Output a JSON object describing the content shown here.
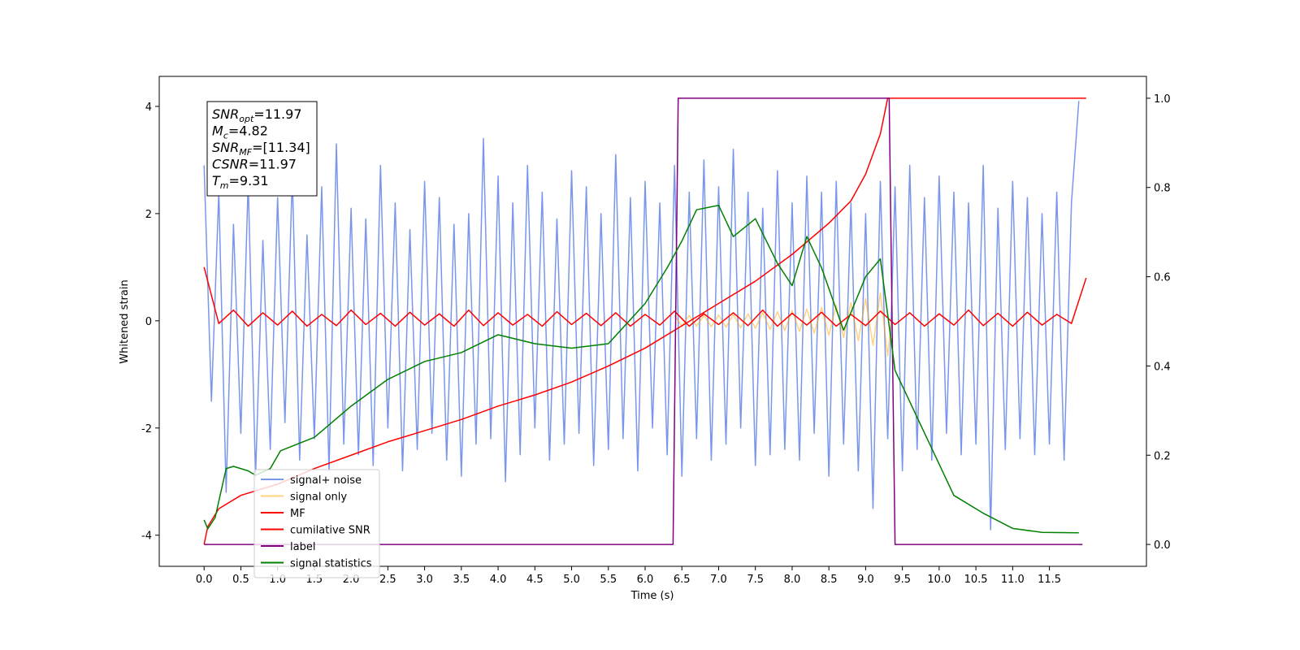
{
  "chart_data": {
    "type": "line",
    "xlabel": "Time (s)",
    "ylabel": "Whitened strain",
    "xlim": [
      -0.61,
      12.82
    ],
    "ylim": [
      -4.58,
      4.56
    ],
    "y2lim": [
      -0.049,
      1.049
    ],
    "xticks": [
      {
        "value": 0,
        "label": "0.0"
      },
      0.5,
      {
        "value": 1,
        "label": "1.0"
      },
      1.5,
      {
        "value": 2,
        "label": "2.0"
      },
      2.5,
      {
        "value": 3,
        "label": "3.0"
      },
      3.5,
      {
        "value": 4,
        "label": "4.0"
      },
      4.5,
      {
        "value": 5,
        "label": "5.0"
      },
      5.5,
      {
        "value": 6,
        "label": "6.0"
      },
      6.5,
      {
        "value": 7,
        "label": "7.0"
      },
      7.5,
      {
        "value": 8,
        "label": "8.0"
      },
      8.5,
      {
        "value": 9,
        "label": "9.0"
      },
      9.5,
      {
        "value": 10,
        "label": "10.0"
      },
      10.5,
      {
        "value": 11,
        "label": "11.0"
      },
      11.5
    ],
    "yticks": [
      -4,
      -2,
      0,
      2,
      4
    ],
    "y2ticks": [
      {
        "value": 0,
        "label": "0.0"
      },
      0.2,
      0.4,
      0.6,
      0.8,
      {
        "value": 1,
        "label": "1.0"
      }
    ],
    "legend_position": "lower left",
    "annotations": [
      {
        "symbol": "SNR",
        "sub": "opt",
        "text": "=11.97"
      },
      {
        "symbol": "M",
        "sub": "c",
        "text": "=4.82"
      },
      {
        "symbol": "SNR",
        "sub": "MF",
        "text": "=[11.34]"
      },
      {
        "symbol": "CSNR",
        "sub": "",
        "text": "=11.97"
      },
      {
        "symbol": "T",
        "sub": "m",
        "text": "=9.31"
      }
    ],
    "series": [
      {
        "name": "signal+ noise",
        "color": "#4169e1",
        "opacity": 0.7,
        "axis": "y",
        "x": [
          0,
          0.1,
          0.2,
          0.3,
          0.4,
          0.5,
          0.6,
          0.7,
          0.8,
          0.9,
          1,
          1.1,
          1.2,
          1.3,
          1.4,
          1.5,
          1.6,
          1.7,
          1.8,
          1.9,
          2,
          2.1,
          2.2,
          2.3,
          2.4,
          2.5,
          2.6,
          2.7,
          2.8,
          2.9,
          3,
          3.1,
          3.2,
          3.3,
          3.4,
          3.5,
          3.6,
          3.7,
          3.8,
          3.9,
          4,
          4.1,
          4.2,
          4.3,
          4.4,
          4.5,
          4.6,
          4.7,
          4.8,
          4.9,
          5,
          5.1,
          5.2,
          5.3,
          5.4,
          5.5,
          5.6,
          5.7,
          5.8,
          5.9,
          6,
          6.1,
          6.2,
          6.3,
          6.4,
          6.5,
          6.6,
          6.7,
          6.8,
          6.9,
          7,
          7.1,
          7.2,
          7.3,
          7.4,
          7.5,
          7.6,
          7.7,
          7.8,
          7.9,
          8,
          8.1,
          8.2,
          8.3,
          8.4,
          8.5,
          8.6,
          8.7,
          8.8,
          8.9,
          9,
          9.1,
          9.2,
          9.3,
          9.4,
          9.5,
          9.6,
          9.7,
          9.8,
          9.9,
          10,
          10.1,
          10.2,
          10.3,
          10.4,
          10.5,
          10.6,
          10.7,
          10.8,
          10.9,
          11,
          11.1,
          11.2,
          11.3,
          11.4,
          11.5,
          11.6,
          11.7,
          11.8,
          11.9
        ],
        "values": [
          2.9,
          -1.5,
          2.4,
          -3.2,
          1.8,
          -2.1,
          2.6,
          -2.9,
          1.5,
          -2.4,
          2.3,
          -1.9,
          2.7,
          -2.6,
          1.6,
          -2.2,
          2.5,
          -2.8,
          3.3,
          -2.3,
          2.1,
          -2.5,
          1.9,
          -2.7,
          2.9,
          -2.0,
          2.2,
          -2.8,
          1.7,
          -2.4,
          2.6,
          -2.1,
          2.3,
          -2.6,
          1.8,
          -2.9,
          2.0,
          -2.3,
          3.4,
          -2.2,
          2.7,
          -3.0,
          2.2,
          -2.5,
          2.9,
          -2.0,
          2.4,
          -2.6,
          1.9,
          -2.3,
          2.8,
          -2.1,
          2.5,
          -2.7,
          2.0,
          -2.4,
          3.1,
          -2.2,
          2.3,
          -2.8,
          2.6,
          -2.0,
          2.2,
          -2.5,
          2.9,
          -2.9,
          2.4,
          -2.2,
          3.0,
          -2.6,
          2.5,
          -2.3,
          3.2,
          -2.0,
          2.4,
          -2.7,
          2.1,
          -2.5,
          2.8,
          -2.4,
          2.2,
          -2.6,
          2.7,
          -2.1,
          2.4,
          -2.9,
          2.6,
          -2.3,
          2.2,
          -2.8,
          2.0,
          -3.5,
          2.6,
          -2.2,
          2.5,
          -2.8,
          2.9,
          -2.4,
          2.3,
          -2.6,
          2.7,
          -2.1,
          2.4,
          -2.5,
          2.2,
          -2.3,
          2.9,
          -3.9,
          2.1,
          -2.4,
          2.6,
          -2.2,
          2.3,
          -2.5,
          2.0,
          -2.3,
          2.4,
          -2.6,
          2.2,
          4.1
        ]
      },
      {
        "name": "signal only",
        "color": "#ffa500",
        "opacity": 0.5,
        "axis": "y",
        "x": [
          6.4,
          6.5,
          6.6,
          6.7,
          6.8,
          6.9,
          7,
          7.1,
          7.2,
          7.3,
          7.4,
          7.5,
          7.6,
          7.7,
          7.8,
          7.9,
          8,
          8.1,
          8.2,
          8.3,
          8.4,
          8.5,
          8.6,
          8.7,
          8.8,
          8.9,
          9,
          9.1,
          9.2,
          9.3,
          9.35
        ],
        "values": [
          0.1,
          -0.1,
          0.1,
          -0.1,
          0.1,
          -0.11,
          0.11,
          -0.12,
          0.12,
          -0.13,
          0.13,
          -0.14,
          0.15,
          -0.16,
          0.17,
          -0.18,
          0.19,
          -0.2,
          0.22,
          -0.23,
          0.25,
          -0.27,
          0.29,
          -0.31,
          0.34,
          -0.37,
          0.41,
          -0.46,
          0.52,
          -0.65,
          0
        ]
      },
      {
        "name": "MF",
        "color": "#ff0000",
        "opacity": 1,
        "axis": "y",
        "x": [
          0,
          0.2,
          0.4,
          0.6,
          0.8,
          1,
          1.2,
          1.4,
          1.6,
          1.8,
          2,
          2.2,
          2.4,
          2.6,
          2.8,
          3,
          3.2,
          3.4,
          3.6,
          3.8,
          4,
          4.2,
          4.4,
          4.6,
          4.8,
          5,
          5.2,
          5.4,
          5.6,
          5.8,
          6,
          6.2,
          6.4,
          6.6,
          6.8,
          7,
          7.2,
          7.4,
          7.6,
          7.8,
          8,
          8.2,
          8.4,
          8.6,
          8.8,
          9,
          9.2,
          9.4,
          9.6,
          9.8,
          10,
          10.2,
          10.4,
          10.6,
          10.8,
          11,
          11.2,
          11.4,
          11.6,
          11.8,
          12
        ],
        "values": [
          1.0,
          -0.05,
          0.2,
          -0.1,
          0.15,
          -0.08,
          0.18,
          -0.1,
          0.12,
          -0.09,
          0.2,
          -0.07,
          0.14,
          -0.1,
          0.16,
          -0.08,
          0.13,
          -0.1,
          0.2,
          -0.09,
          0.15,
          -0.08,
          0.12,
          -0.1,
          0.17,
          -0.07,
          0.14,
          -0.09,
          0.15,
          -0.1,
          0.12,
          -0.08,
          0.18,
          -0.1,
          0.13,
          -0.07,
          0.15,
          -0.09,
          0.2,
          -0.1,
          0.14,
          -0.08,
          0.16,
          -0.1,
          0.12,
          -0.09,
          0.18,
          -0.07,
          0.15,
          -0.1,
          0.13,
          -0.08,
          0.2,
          -0.09,
          0.14,
          -0.1,
          0.16,
          -0.08,
          0.12,
          -0.05,
          0.8
        ]
      },
      {
        "name": "cumilative SNR",
        "color": "#ff0000",
        "opacity": 1,
        "axis": "y2",
        "x": [
          0,
          0.05,
          0.2,
          0.5,
          1,
          1.5,
          2,
          2.5,
          3,
          3.5,
          4,
          4.5,
          5,
          5.5,
          6,
          6.5,
          7,
          7.5,
          8,
          8.5,
          8.8,
          9,
          9.2,
          9.3,
          12
        ],
        "values": [
          0,
          0.04,
          0.08,
          0.11,
          0.135,
          0.17,
          0.2,
          0.23,
          0.255,
          0.28,
          0.31,
          0.335,
          0.364,
          0.4,
          0.44,
          0.49,
          0.54,
          0.59,
          0.65,
          0.72,
          0.77,
          0.83,
          0.92,
          1.0,
          1.0
        ]
      },
      {
        "name": "label",
        "color": "#800080",
        "opacity": 1,
        "axis": "y2",
        "x": [
          0,
          6.38,
          6.45,
          9.32,
          9.4,
          11.95
        ],
        "values": [
          0,
          0,
          1,
          1,
          0,
          0
        ]
      },
      {
        "name": "signal statistics",
        "color": "#008000",
        "opacity": 1,
        "axis": "y2",
        "x": [
          0,
          0.05,
          0.15,
          0.3,
          0.4,
          0.6,
          0.7,
          0.9,
          1.04,
          1.5,
          2,
          2.5,
          3,
          3.5,
          4,
          4.5,
          5,
          5.5,
          6,
          6.3,
          6.5,
          6.7,
          7,
          7.2,
          7.5,
          7.8,
          8,
          8.2,
          8.4,
          8.7,
          9,
          9.2,
          9.4,
          9.8,
          10.2,
          10.6,
          11,
          11.4,
          11.9
        ],
        "values": [
          0.055,
          0.035,
          0.06,
          0.17,
          0.175,
          0.165,
          0.155,
          0.17,
          0.21,
          0.24,
          0.31,
          0.37,
          0.41,
          0.43,
          0.47,
          0.45,
          0.44,
          0.45,
          0.54,
          0.62,
          0.68,
          0.75,
          0.76,
          0.69,
          0.73,
          0.63,
          0.58,
          0.69,
          0.62,
          0.48,
          0.6,
          0.64,
          0.39,
          0.25,
          0.11,
          0.07,
          0.036,
          0.027,
          0.026
        ]
      }
    ]
  }
}
